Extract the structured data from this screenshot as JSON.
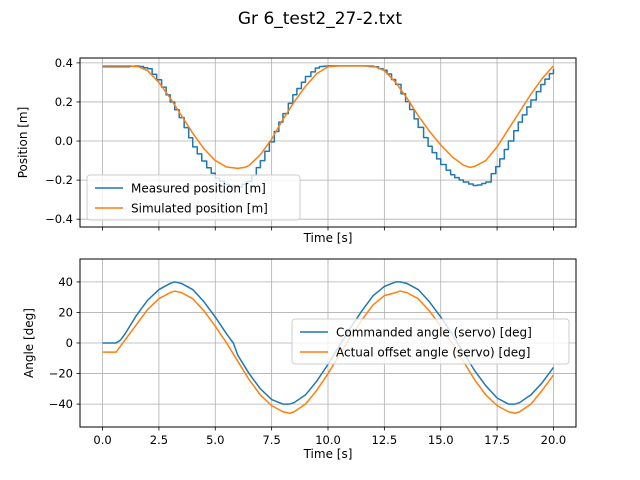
{
  "figure": {
    "title": "Gr 6_test2_27-2.txt"
  },
  "chart_data": [
    {
      "type": "line",
      "xlabel": "Time [s]",
      "ylabel": "Position [m]",
      "xlim": [
        -1.0,
        21.0
      ],
      "ylim": [
        -0.44,
        0.425
      ],
      "xticks": [
        0.0,
        2.5,
        5.0,
        7.5,
        10.0,
        12.5,
        15.0,
        17.5,
        20.0
      ],
      "xtick_labels_visible": false,
      "yticks": [
        -0.4,
        -0.2,
        0.0,
        0.2,
        0.4
      ],
      "ytick_labels": [
        "−0.4",
        "−0.2",
        "0.0",
        "0.2",
        "0.4"
      ],
      "grid": true,
      "legend": "lower-left",
      "series": [
        {
          "name": "Measured position [m]",
          "color": "#1f77b4",
          "step": 0.2,
          "x": [
            0,
            1,
            1.5,
            2,
            2.5,
            3,
            3.5,
            4,
            4.5,
            5,
            5.5,
            6,
            6.5,
            7,
            7.5,
            8,
            8.5,
            9,
            9.5,
            10,
            10.5,
            11,
            11.5,
            12,
            12.5,
            13,
            13.5,
            14,
            14.5,
            15,
            15.5,
            16,
            16.5,
            17,
            17.5,
            18,
            18.5,
            19,
            19.5,
            20
          ],
          "y": [
            0.38,
            0.38,
            0.385,
            0.37,
            0.3,
            0.2,
            0.1,
            -0.03,
            -0.12,
            -0.19,
            -0.23,
            -0.235,
            -0.2,
            -0.1,
            0.02,
            0.14,
            0.25,
            0.33,
            0.38,
            0.385,
            0.385,
            0.385,
            0.385,
            0.38,
            0.36,
            0.29,
            0.19,
            0.07,
            -0.04,
            -0.12,
            -0.18,
            -0.21,
            -0.23,
            -0.21,
            -0.12,
            0.0,
            0.11,
            0.21,
            0.3,
            0.37
          ]
        },
        {
          "name": "Simulated position [m]",
          "color": "#ff7f0e",
          "x": [
            0,
            0.8,
            1.2,
            1.6,
            2,
            2.5,
            3,
            3.5,
            4,
            4.5,
            5,
            5.5,
            6,
            6.3,
            6.5,
            7,
            7.5,
            8,
            8.5,
            9,
            9.5,
            10,
            10.5,
            11,
            11.5,
            12,
            12.5,
            13,
            13.5,
            14,
            14.5,
            15,
            15.5,
            16,
            16.3,
            16.5,
            17,
            17.5,
            18,
            18.5,
            19,
            19.5,
            20
          ],
          "y": [
            0.385,
            0.385,
            0.385,
            0.38,
            0.36,
            0.3,
            0.22,
            0.13,
            0.04,
            -0.04,
            -0.1,
            -0.133,
            -0.14,
            -0.135,
            -0.125,
            -0.07,
            0.01,
            0.11,
            0.2,
            0.28,
            0.345,
            0.38,
            0.385,
            0.385,
            0.385,
            0.385,
            0.36,
            0.3,
            0.22,
            0.13,
            0.05,
            -0.02,
            -0.08,
            -0.123,
            -0.135,
            -0.13,
            -0.1,
            -0.03,
            0.06,
            0.15,
            0.24,
            0.32,
            0.385
          ]
        }
      ]
    },
    {
      "type": "line",
      "xlabel": "Time [s]",
      "ylabel": "Angle [deg]",
      "xlim": [
        -1.0,
        21.0
      ],
      "ylim": [
        -55,
        55
      ],
      "xticks": [
        0.0,
        2.5,
        5.0,
        7.5,
        10.0,
        12.5,
        15.0,
        17.5,
        20.0
      ],
      "xtick_labels": [
        "0.0",
        "2.5",
        "5.0",
        "7.5",
        "10.0",
        "12.5",
        "15.0",
        "17.5",
        "20.0"
      ],
      "xtick_labels_visible": true,
      "yticks": [
        -40,
        -20,
        0,
        20,
        40
      ],
      "ytick_labels": [
        "−40",
        "−20",
        "0",
        "20",
        "40"
      ],
      "grid": true,
      "legend": "center-right",
      "series": [
        {
          "name": "Commanded angle (servo) [deg]",
          "color": "#1f77b4",
          "x": [
            0,
            0.6,
            0.8,
            1,
            1.5,
            2,
            2.5,
            3,
            3.2,
            3.5,
            4,
            4.5,
            5,
            5.5,
            5.6,
            5.8,
            6,
            6.5,
            7,
            7.5,
            8,
            8.3,
            8.5,
            9,
            9.5,
            10,
            10.5,
            11,
            11.5,
            12,
            12.5,
            13,
            13.2,
            13.5,
            14,
            14.5,
            15,
            15.5,
            16,
            16.5,
            17,
            17.5,
            18,
            18.3,
            18.5,
            19,
            19.5,
            20
          ],
          "y": [
            0,
            0,
            2,
            6,
            18,
            28,
            35,
            39,
            40,
            39,
            35,
            27,
            17,
            6,
            4,
            0,
            -8,
            -20,
            -30,
            -37,
            -40,
            -40,
            -39,
            -34,
            -25,
            -14,
            -2,
            10,
            21,
            31,
            37,
            40,
            40,
            39,
            35,
            27,
            17,
            6,
            -6,
            -18,
            -28,
            -36,
            -40,
            -40,
            -39,
            -34,
            -26,
            -16
          ]
        },
        {
          "name": "Actual offset angle (servo) [deg]",
          "color": "#ff7f0e",
          "x": [
            0,
            0.6,
            0.8,
            1,
            1.5,
            2,
            2.5,
            3,
            3.2,
            3.5,
            4,
            4.5,
            5,
            5.5,
            6,
            6.5,
            7,
            7.5,
            8,
            8.3,
            8.5,
            9,
            9.5,
            10,
            10.5,
            11,
            11.5,
            12,
            12.5,
            13,
            13.2,
            13.5,
            14,
            14.5,
            15,
            15.5,
            16,
            16.5,
            17,
            17.5,
            18,
            18.3,
            18.5,
            19,
            19.5,
            20
          ],
          "y": [
            -6,
            -6,
            -2,
            2,
            12,
            22,
            29,
            33,
            34,
            33,
            29,
            21,
            11,
            0,
            -12,
            -24,
            -34,
            -41,
            -45,
            -46,
            -45,
            -40,
            -31,
            -20,
            -8,
            4,
            15,
            25,
            31,
            33,
            34,
            33,
            29,
            21,
            11,
            0,
            -12,
            -24,
            -34,
            -41,
            -45,
            -46,
            -45,
            -40,
            -31,
            -21
          ]
        }
      ]
    }
  ]
}
